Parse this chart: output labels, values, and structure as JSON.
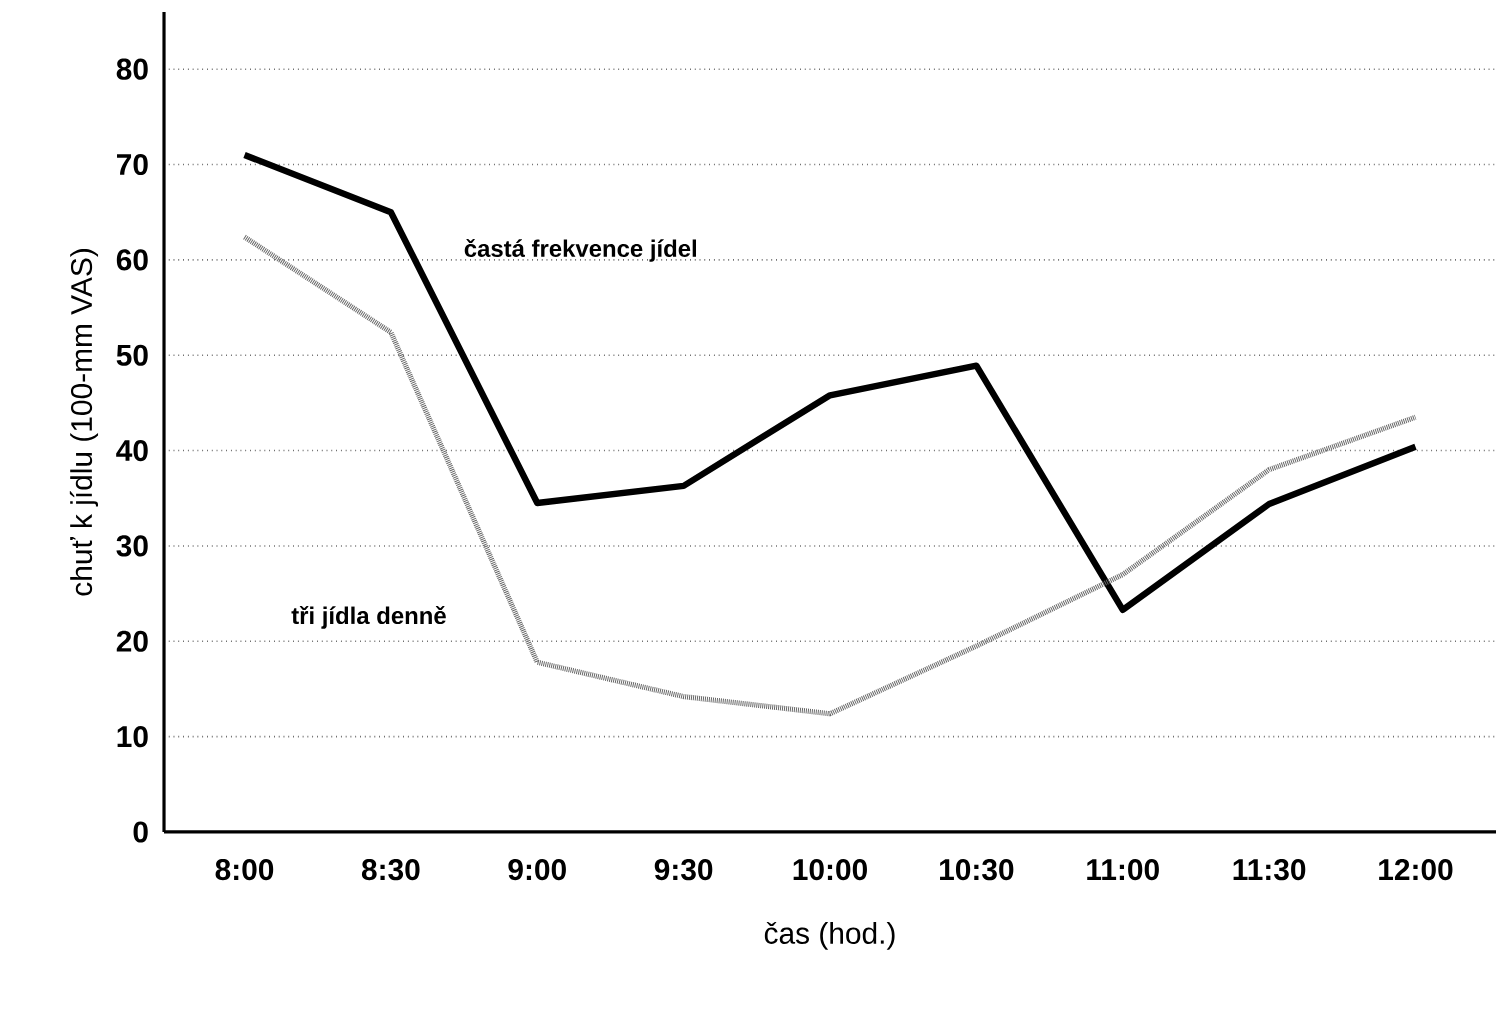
{
  "chart_data": {
    "type": "line",
    "xlabel": "čas (hod.)",
    "ylabel": "chuť k jídlu (100-mm VAS)",
    "categories": [
      "8:00",
      "8:30",
      "9:00",
      "9:30",
      "10:00",
      "10:30",
      "11:00",
      "11:30",
      "12:00"
    ],
    "series": [
      {
        "name": "častá frekvence jídel",
        "color": "#000000",
        "line_style": "solid",
        "values": [
          71,
          65,
          34.5,
          36.3,
          45.8,
          48.9,
          23.3,
          34.4,
          40.4
        ]
      },
      {
        "name": "tři jídla denně",
        "color": "#666666",
        "line_style": "dotted",
        "values": [
          62.4,
          52.4,
          17.8,
          14.2,
          12.4,
          19.5,
          27,
          38,
          43.5
        ]
      }
    ],
    "ylim": [
      0,
      86
    ],
    "yticks": [
      0,
      10,
      20,
      30,
      40,
      50,
      60,
      70,
      80
    ],
    "grid": "y",
    "legend": false,
    "marker": "none"
  }
}
